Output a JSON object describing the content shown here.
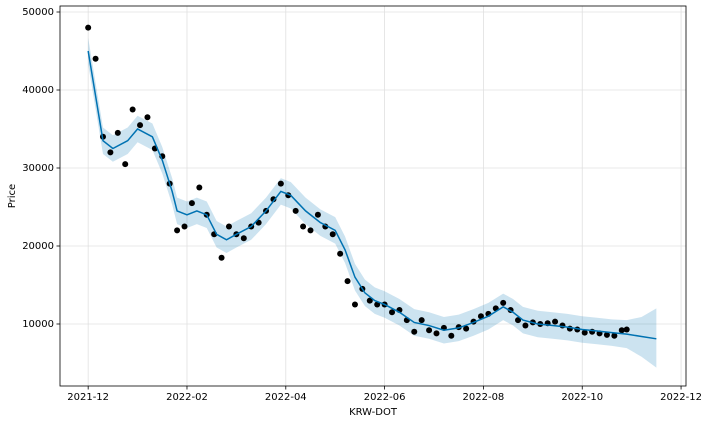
{
  "chart_data": {
    "type": "forecast",
    "x_label": "KRW-DOT",
    "y_label": "Price",
    "xlim": [
      -0.57,
      12.1
    ],
    "ylim": [
      2050,
      50770
    ],
    "xticks": [
      {
        "value": 0,
        "label": "2021-12"
      },
      {
        "value": 2,
        "label": "2022-02"
      },
      {
        "value": 4,
        "label": "2022-04"
      },
      {
        "value": 6,
        "label": "2022-06"
      },
      {
        "value": 8,
        "label": "2022-08"
      },
      {
        "value": 10,
        "label": "2022-10"
      },
      {
        "value": 12,
        "label": "2022-12"
      }
    ],
    "yticks": [
      10000,
      20000,
      30000,
      40000,
      50000
    ],
    "grid": true,
    "observed": {
      "color": "#000000",
      "x": [
        0.0,
        0.15,
        0.3,
        0.45,
        0.6,
        0.75,
        0.9,
        1.05,
        1.2,
        1.35,
        1.5,
        1.65,
        1.8,
        1.95,
        2.1,
        2.25,
        2.4,
        2.55,
        2.7,
        2.85,
        3.0,
        3.15,
        3.3,
        3.45,
        3.6,
        3.75,
        3.9,
        4.05,
        4.2,
        4.35,
        4.5,
        4.65,
        4.8,
        4.95,
        5.1,
        5.25,
        5.4,
        5.55,
        5.7,
        5.85,
        6.0,
        6.15,
        6.3,
        6.45,
        6.6,
        6.75,
        6.9,
        7.05,
        7.2,
        7.35,
        7.5,
        7.65,
        7.8,
        7.95,
        8.1,
        8.25,
        8.4,
        8.55,
        8.7,
        8.85,
        9.0,
        9.15,
        9.3,
        9.45,
        9.6,
        9.75,
        9.9,
        10.05,
        10.2,
        10.35,
        10.5,
        10.65,
        10.8,
        10.9
      ],
      "values": [
        48000,
        44000,
        34000,
        32000,
        34500,
        30500,
        37500,
        35500,
        36500,
        32500,
        31500,
        28000,
        22000,
        22500,
        25500,
        27500,
        24000,
        21500,
        18500,
        22500,
        21500,
        21000,
        22500,
        23000,
        24500,
        26000,
        28000,
        26500,
        24500,
        22500,
        22000,
        24000,
        22500,
        21500,
        19000,
        15500,
        12500,
        14500,
        13000,
        12500,
        12500,
        11500,
        11800,
        10500,
        9000,
        10500,
        9200,
        8800,
        9500,
        8500,
        9600,
        9400,
        10300,
        11000,
        11300,
        12000,
        12700,
        11800,
        10500,
        9800,
        10200,
        10000,
        10100,
        10300,
        9800,
        9400,
        9300,
        8900,
        9000,
        8800,
        8600,
        8500,
        9200,
        9300
      ]
    },
    "forecast": {
      "color": "#0072B2",
      "band_color": "#0072B2",
      "x": [
        0,
        0.3,
        0.5,
        0.8,
        1.0,
        1.3,
        1.5,
        1.7,
        1.8,
        2.0,
        2.2,
        2.4,
        2.6,
        2.8,
        3.0,
        3.3,
        3.6,
        3.9,
        4.1,
        4.4,
        4.7,
        5.0,
        5.2,
        5.4,
        5.6,
        5.8,
        6.0,
        6.3,
        6.6,
        6.9,
        7.2,
        7.5,
        7.8,
        8.1,
        8.4,
        8.6,
        8.8,
        9.1,
        9.4,
        9.7,
        10.0,
        10.3,
        10.6,
        10.9,
        11.2,
        11.5
      ],
      "values": [
        45000,
        33500,
        32500,
        33500,
        35000,
        34000,
        31000,
        27000,
        24500,
        24000,
        24500,
        24000,
        21500,
        20800,
        21500,
        22500,
        24500,
        27000,
        26500,
        24500,
        23000,
        22000,
        19500,
        16000,
        14000,
        13000,
        12500,
        11500,
        10200,
        9800,
        9200,
        9500,
        10200,
        11000,
        12200,
        11500,
        10500,
        10000,
        9800,
        9600,
        9300,
        9100,
        8900,
        8700,
        8400,
        8100
      ],
      "lower": [
        43300,
        31800,
        30800,
        31800,
        33300,
        32300,
        29300,
        25300,
        22800,
        22300,
        22800,
        22300,
        19800,
        19100,
        19800,
        20800,
        22800,
        25300,
        24800,
        22800,
        21300,
        20300,
        17800,
        14300,
        12300,
        11300,
        10800,
        9800,
        8500,
        8100,
        7500,
        7800,
        8500,
        9300,
        10500,
        9800,
        8800,
        8300,
        8100,
        7900,
        7600,
        7400,
        7200,
        6900,
        5800,
        4400
      ],
      "upper": [
        46700,
        35200,
        34200,
        35200,
        36700,
        35700,
        32700,
        28700,
        26200,
        25700,
        26200,
        25700,
        23200,
        22500,
        23200,
        24200,
        26200,
        28700,
        28200,
        26200,
        24700,
        23700,
        21200,
        17700,
        15700,
        14700,
        14200,
        13200,
        11900,
        11500,
        10900,
        11200,
        11900,
        12700,
        13900,
        13200,
        12200,
        11700,
        11500,
        11300,
        11000,
        10800,
        10600,
        10500,
        10900,
        12000
      ]
    }
  }
}
